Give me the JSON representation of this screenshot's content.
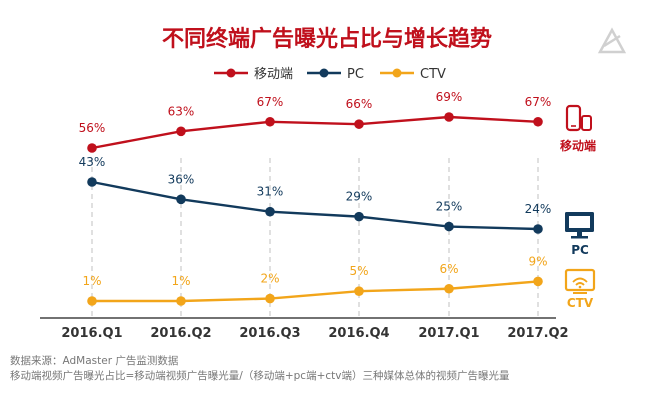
{
  "chart_data": {
    "type": "line",
    "title": "不同终端广告曝光占比与增长趋势",
    "categories": [
      "2016.Q1",
      "2016.Q2",
      "2016.Q3",
      "2016.Q4",
      "2017.Q1",
      "2017.Q2"
    ],
    "series": [
      {
        "name": "移动端",
        "values": [
          56,
          63,
          67,
          66,
          69,
          67
        ],
        "labels": [
          "56%",
          "63%",
          "67%",
          "66%",
          "69%",
          "67%"
        ],
        "color": "#c0101c"
      },
      {
        "name": "PC",
        "values": [
          43,
          36,
          31,
          29,
          25,
          24
        ],
        "labels": [
          "43%",
          "36%",
          "31%",
          "29%",
          "25%",
          "24%"
        ],
        "color": "#123a5c"
      },
      {
        "name": "CTV",
        "values": [
          1,
          1,
          2,
          5,
          6,
          9
        ],
        "labels": [
          "1%",
          "1%",
          "2%",
          "5%",
          "6%",
          "9%"
        ],
        "color": "#f2a51a"
      }
    ],
    "grid": false,
    "vertical_guides": "dashed",
    "legend": "top"
  },
  "colors": {
    "title": "#c0101c",
    "axis": "#444444",
    "guide": "#cccccc",
    "watermark": "#d0d0d0"
  },
  "icons": {
    "mobile": "phone-tablet-icon",
    "pc": "monitor-icon",
    "ctv": "tv-wifi-icon",
    "watermark": "logo-watermark-icon"
  },
  "source": {
    "line1": "数据来源：AdMaster 广告监测数据",
    "line2": "移动端视频广告曝光占比=移动端视频广告曝光量/（移动端+pc端+ctv端）三种媒体总体的视频广告曝光量"
  }
}
